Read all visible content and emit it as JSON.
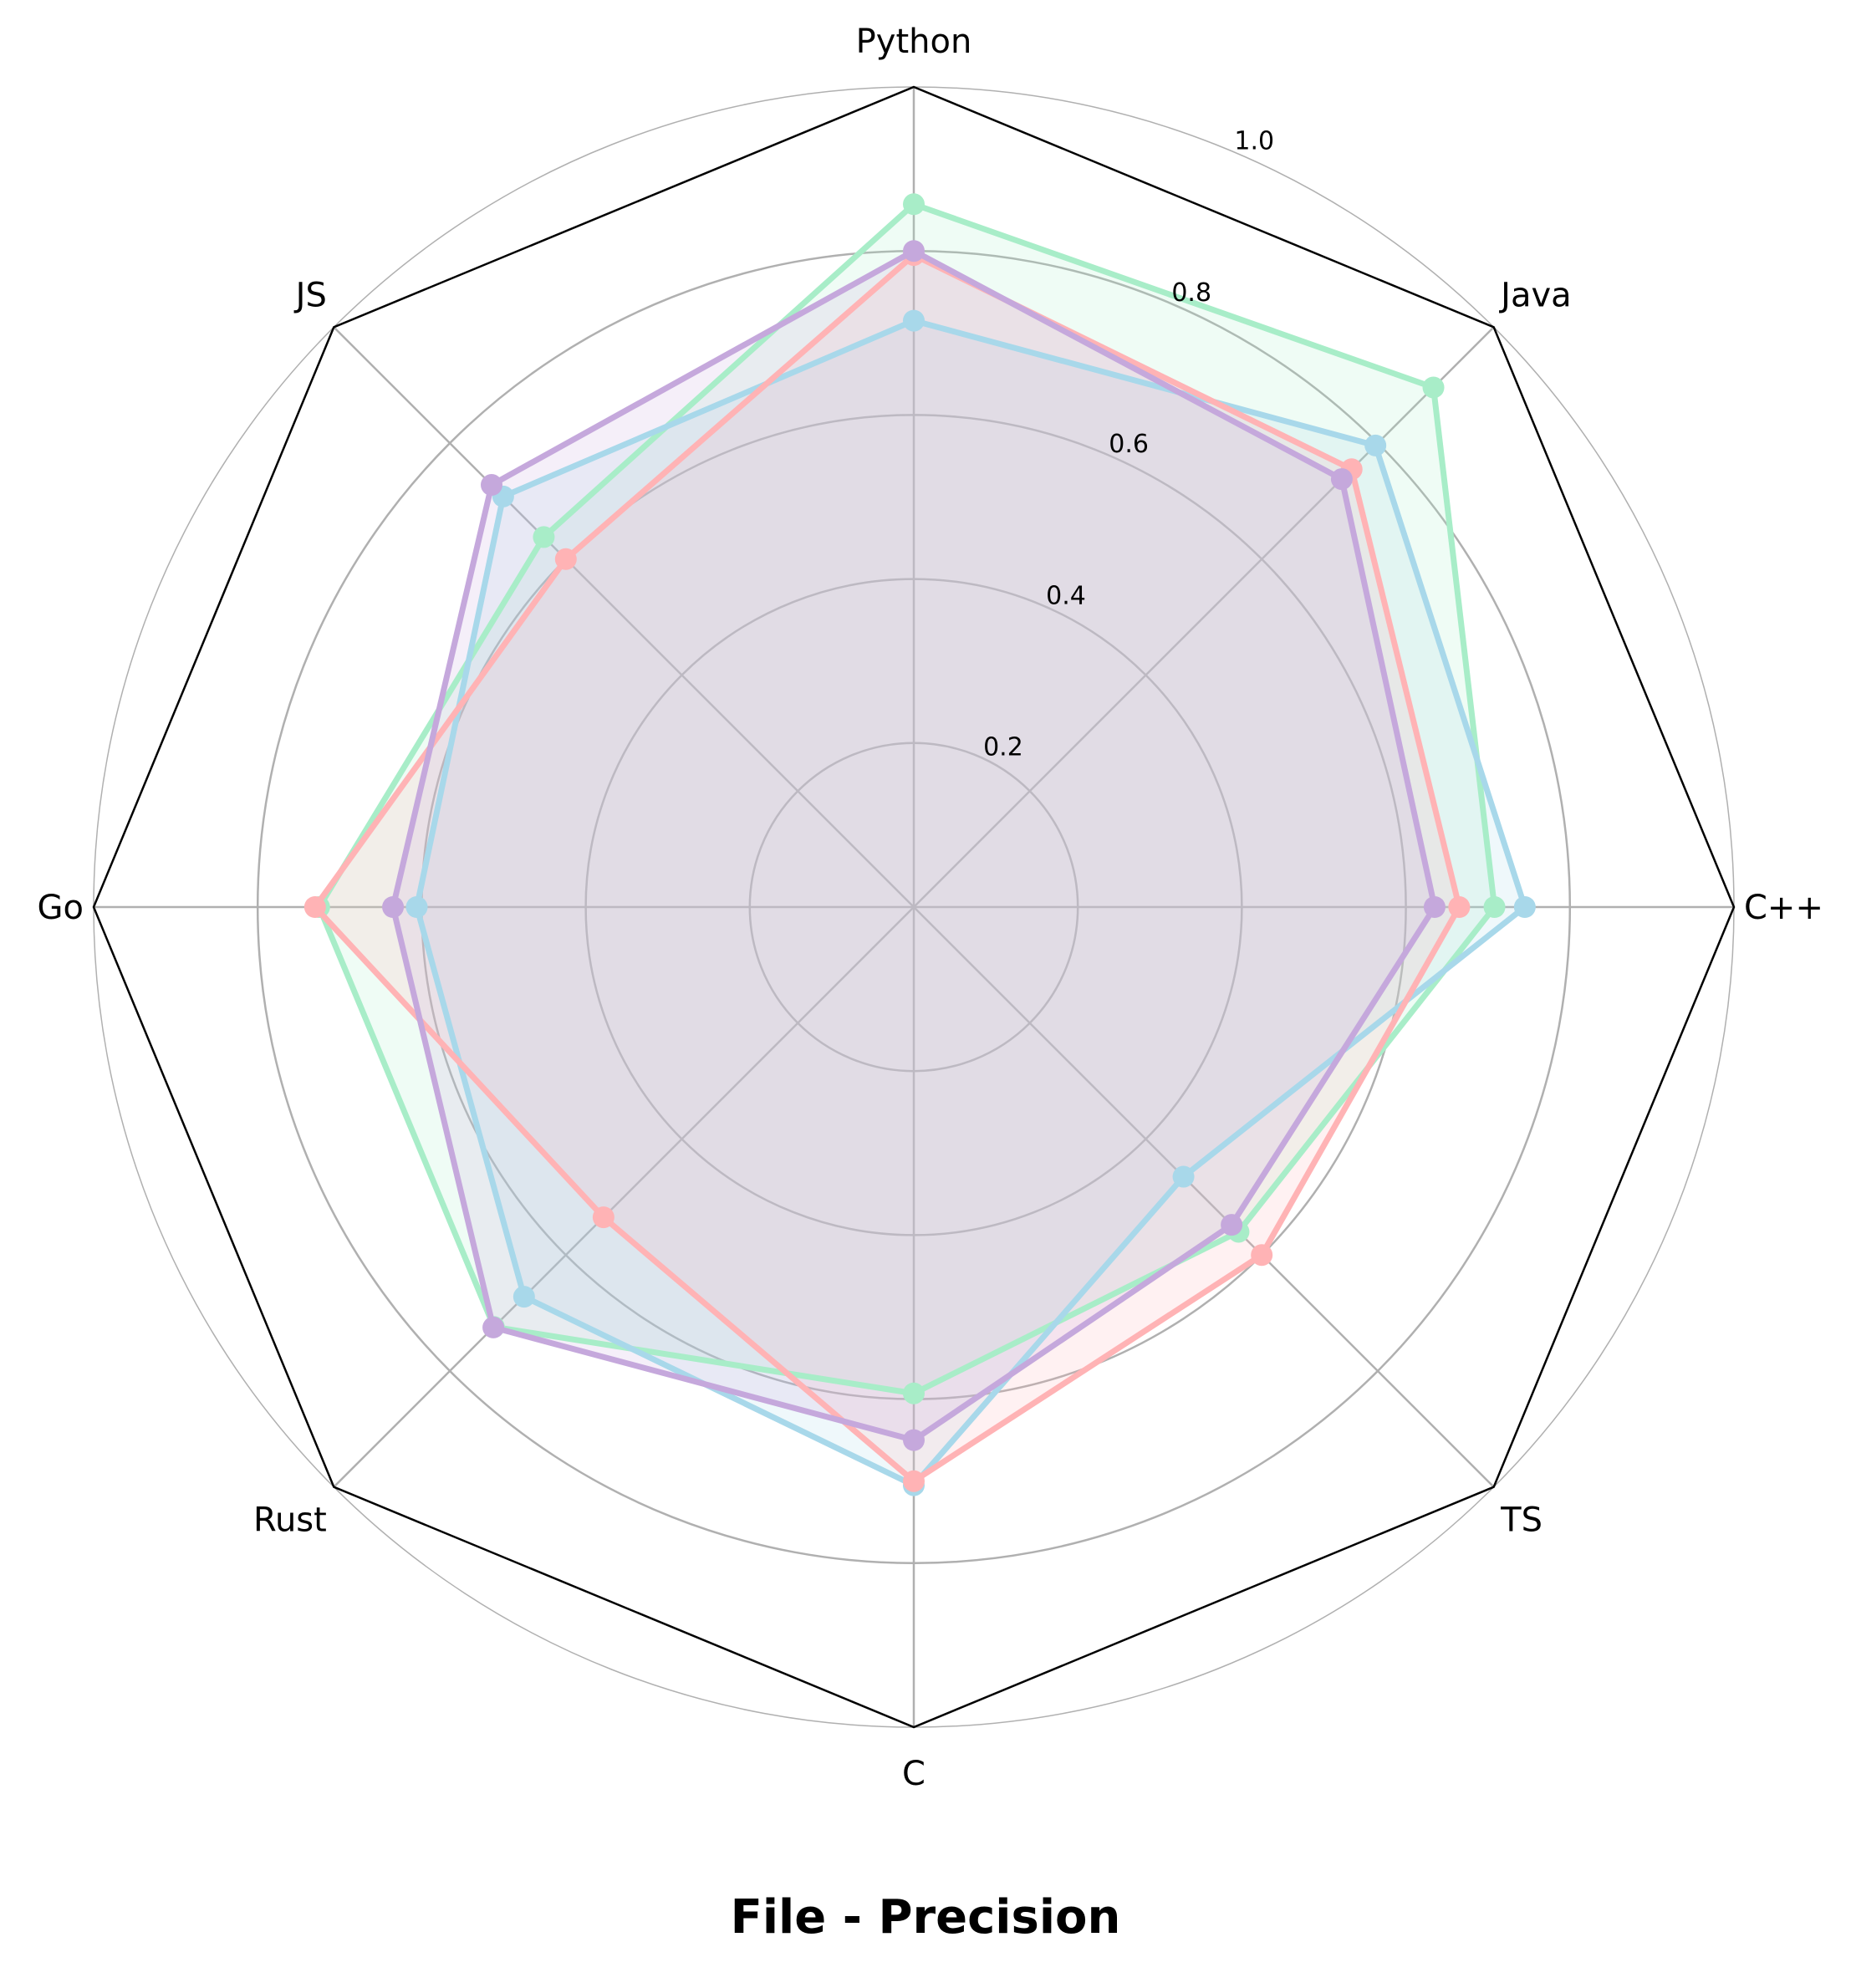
{
  "chart_data": {
    "type": "radar",
    "title": "File - Precision",
    "axes": [
      "Python",
      "Java",
      "C++",
      "TS",
      "C",
      "Rust",
      "Go",
      "JS"
    ],
    "rlim": [
      0,
      1.0
    ],
    "r_ticks": [
      0.2,
      0.4,
      0.6,
      0.8,
      1.0
    ],
    "r_tick_labels": [
      "0.2",
      "0.4",
      "0.6",
      "0.8",
      "1.0"
    ],
    "grid": true,
    "series": [
      {
        "color": "#a8edc8",
        "values": [
          0.857,
          0.896,
          0.708,
          0.56,
          0.593,
          0.724,
          0.725,
          0.638
        ]
      },
      {
        "color": "#a8d8ea",
        "values": [
          0.715,
          0.796,
          0.745,
          0.465,
          0.705,
          0.672,
          0.606,
          0.708
        ]
      },
      {
        "color": "#ffb3b5",
        "values": [
          0.795,
          0.755,
          0.665,
          0.6,
          0.7,
          0.535,
          0.73,
          0.6
        ]
      },
      {
        "color": "#c5a8dc",
        "values": [
          0.8,
          0.738,
          0.635,
          0.548,
          0.65,
          0.725,
          0.635,
          0.728
        ]
      }
    ]
  }
}
